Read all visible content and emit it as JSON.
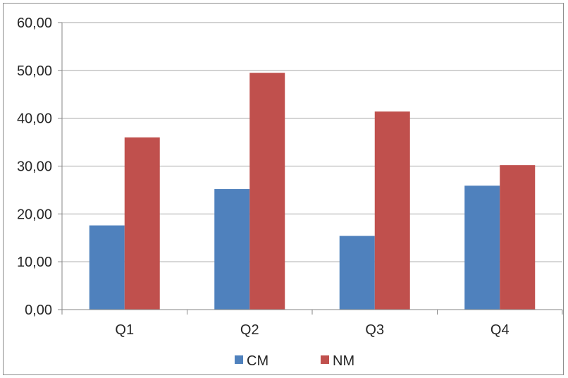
{
  "chart_data": {
    "type": "bar",
    "categories": [
      "Q1",
      "Q2",
      "Q3",
      "Q4"
    ],
    "series": [
      {
        "name": "CM",
        "color": "#4f81bd",
        "values": [
          17.6,
          25.2,
          15.4,
          25.9
        ]
      },
      {
        "name": "NM",
        "color": "#c0504d",
        "values": [
          36.0,
          49.5,
          41.4,
          30.2
        ]
      }
    ],
    "title": "",
    "xlabel": "",
    "ylabel": "",
    "ylim": [
      0,
      60
    ],
    "yticks": [
      "0,00",
      "10,00",
      "20,00",
      "30,00",
      "40,00",
      "50,00",
      "60,00"
    ],
    "grid": true,
    "legend_position": "bottom"
  }
}
